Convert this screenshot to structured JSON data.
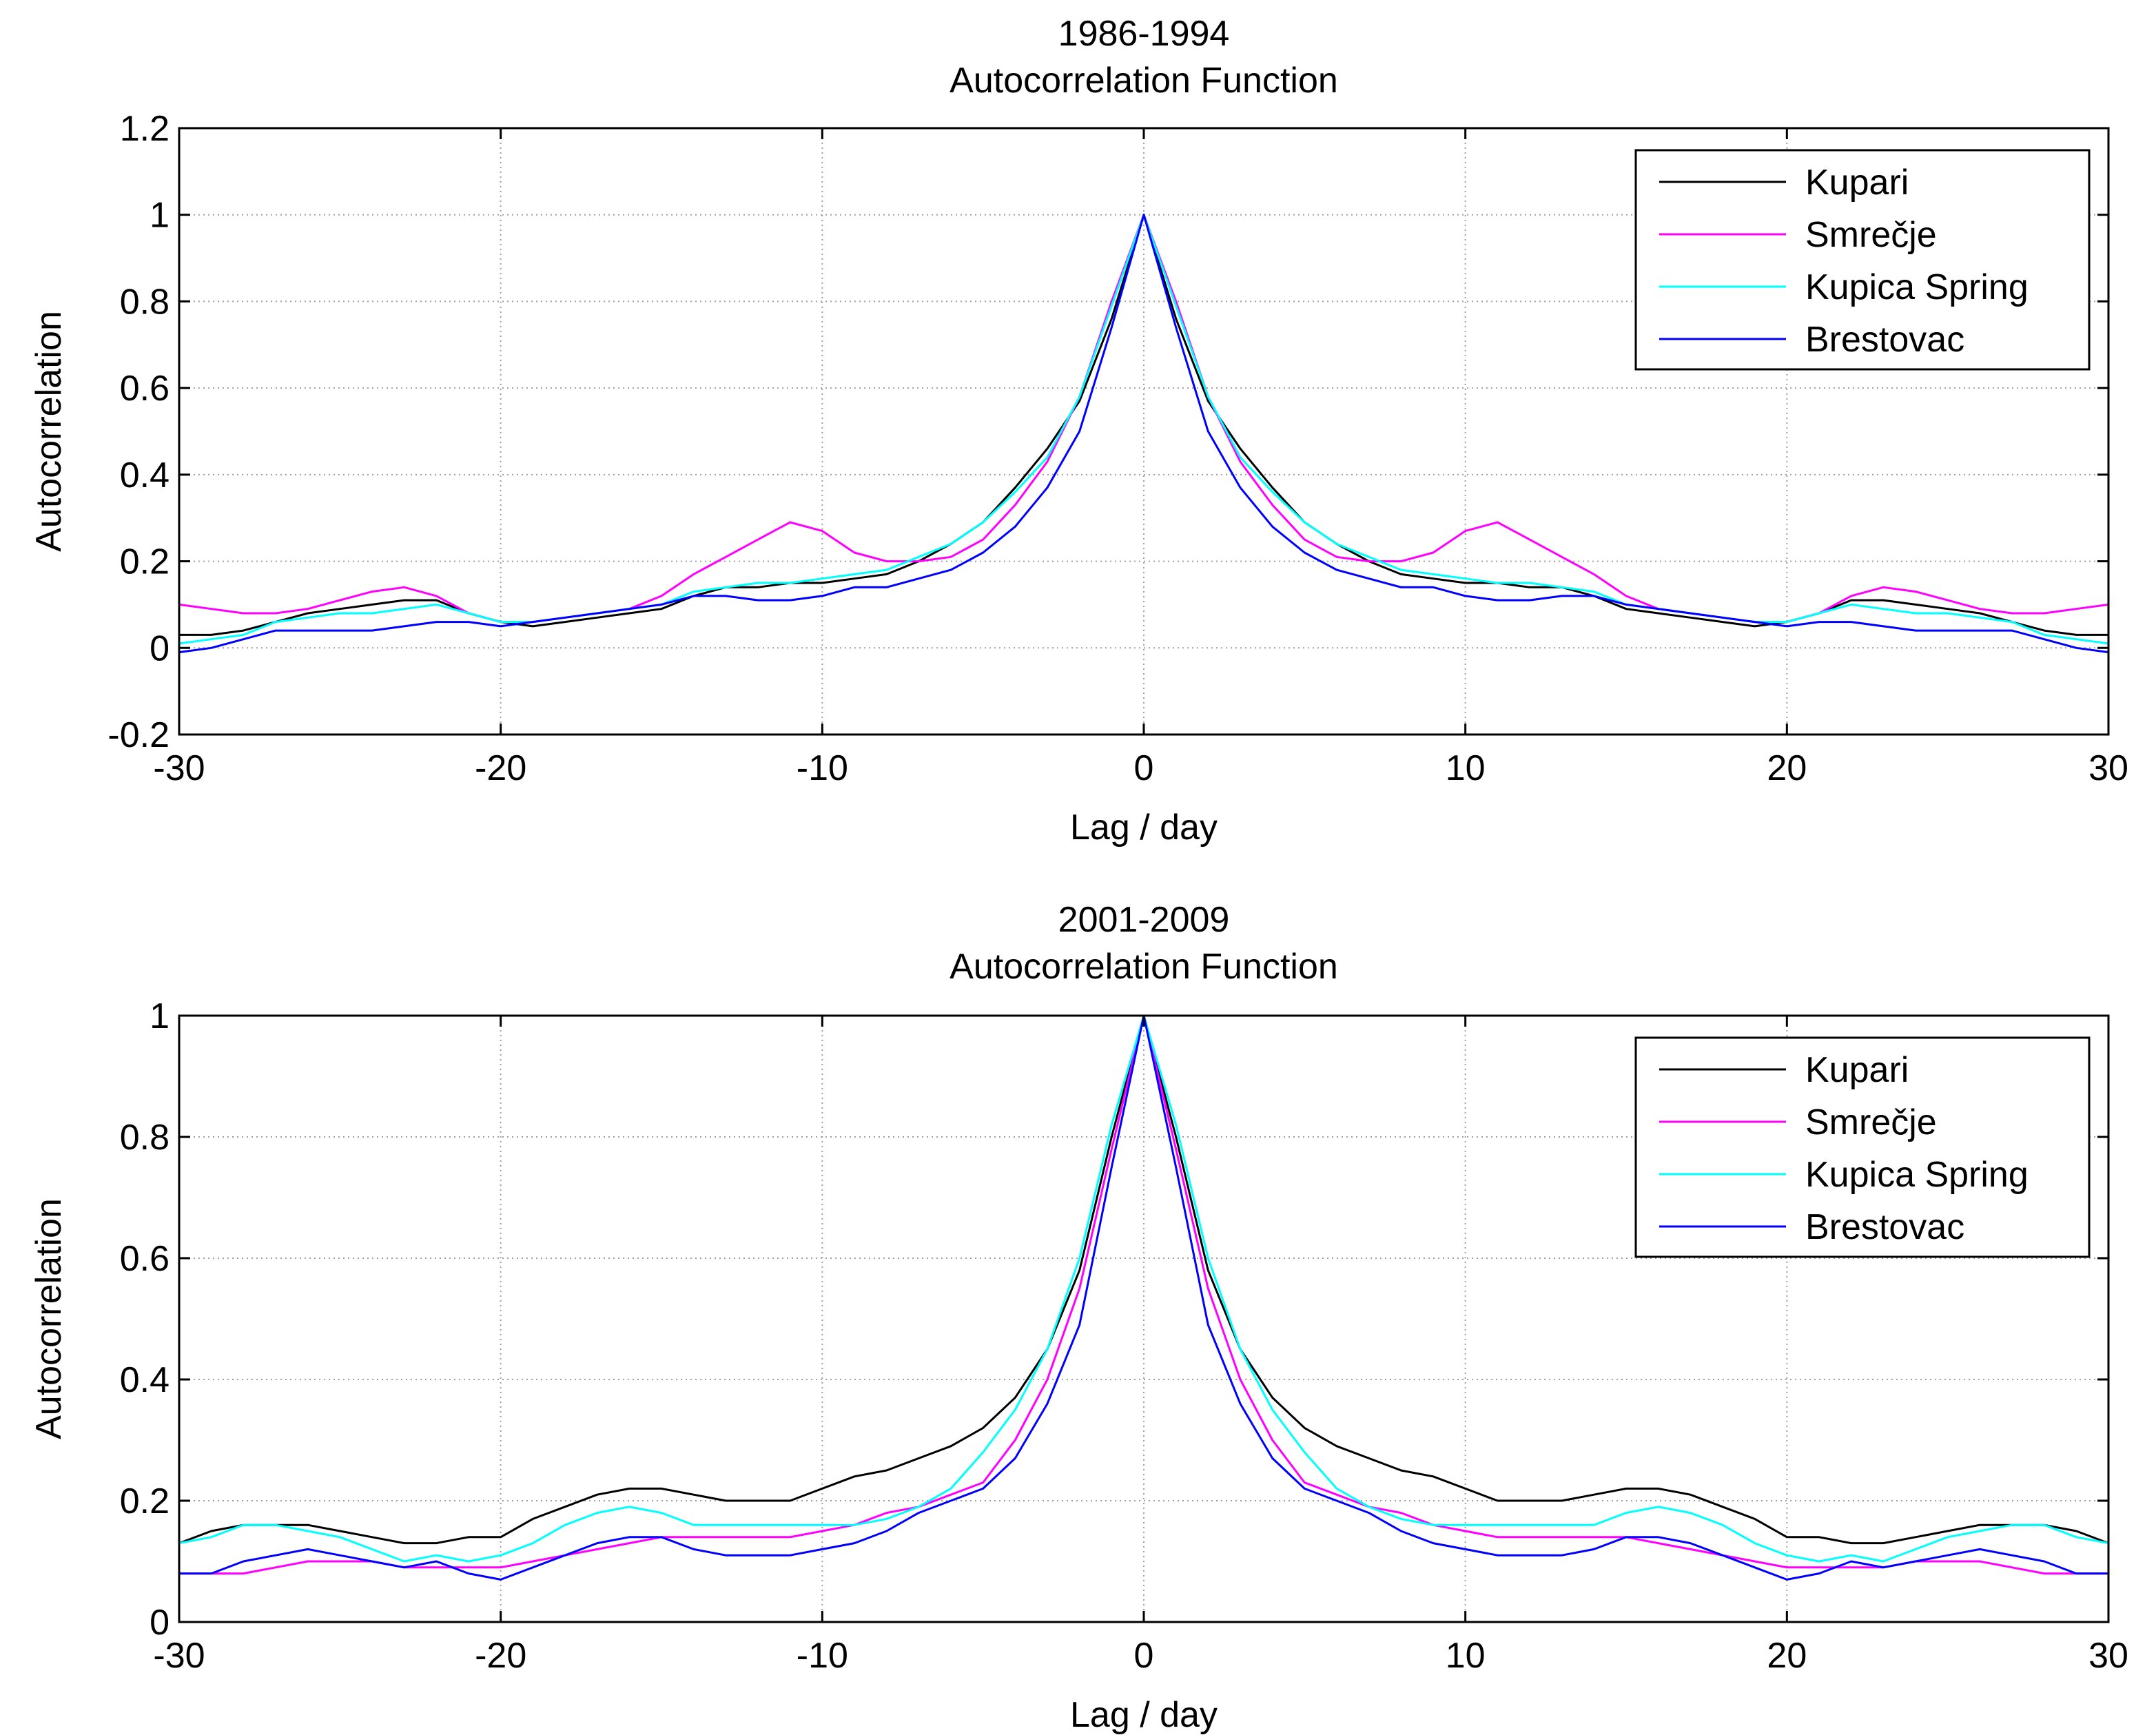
{
  "chart_data": [
    {
      "type": "line",
      "title": [
        "1986-1994",
        "Autocorrelation Function"
      ],
      "xlabel": "Lag / day",
      "ylabel": "Autocorrelation",
      "xlim": [
        -30,
        30
      ],
      "ylim": [
        -0.2,
        1.2
      ],
      "xticks": [
        -30,
        -20,
        -10,
        0,
        10,
        20,
        30
      ],
      "xtick_labels": [
        "-30",
        "-20",
        "-10",
        "0",
        "10",
        "20",
        "30"
      ],
      "yticks": [
        -0.2,
        0,
        0.2,
        0.4,
        0.6,
        0.8,
        1,
        1.2
      ],
      "ytick_labels": [
        "-0.2",
        "0",
        "0.2",
        "0.4",
        "0.6",
        "0.8",
        "1",
        "1.2"
      ],
      "grid": true,
      "legend_position": "top-right",
      "symmetric_about_zero": true,
      "x": [
        0,
        1,
        2,
        3,
        4,
        5,
        6,
        7,
        8,
        9,
        10,
        11,
        12,
        13,
        14,
        15,
        16,
        17,
        18,
        19,
        20,
        21,
        22,
        23,
        24,
        25,
        26,
        27,
        28,
        29,
        30
      ],
      "series": [
        {
          "name": "Kupari",
          "color": "#000000",
          "values": [
            1.0,
            0.76,
            0.57,
            0.46,
            0.37,
            0.29,
            0.24,
            0.2,
            0.17,
            0.16,
            0.15,
            0.15,
            0.14,
            0.14,
            0.12,
            0.09,
            0.08,
            0.07,
            0.06,
            0.05,
            0.06,
            0.08,
            0.11,
            0.11,
            0.1,
            0.09,
            0.08,
            0.06,
            0.04,
            0.03,
            0.03
          ]
        },
        {
          "name": "Smrečje",
          "color": "#ff00ff",
          "values": [
            1.0,
            0.8,
            0.58,
            0.43,
            0.33,
            0.25,
            0.21,
            0.2,
            0.2,
            0.22,
            0.27,
            0.29,
            0.25,
            0.21,
            0.17,
            0.12,
            0.09,
            0.08,
            0.07,
            0.06,
            0.06,
            0.08,
            0.12,
            0.14,
            0.13,
            0.11,
            0.09,
            0.08,
            0.08,
            0.09,
            0.1
          ]
        },
        {
          "name": "Kupica Spring",
          "color": "#00ffff",
          "values": [
            1.0,
            0.79,
            0.58,
            0.44,
            0.36,
            0.29,
            0.24,
            0.21,
            0.18,
            0.17,
            0.16,
            0.15,
            0.15,
            0.14,
            0.13,
            0.1,
            0.09,
            0.08,
            0.07,
            0.06,
            0.06,
            0.08,
            0.1,
            0.09,
            0.08,
            0.08,
            0.07,
            0.06,
            0.03,
            0.02,
            0.01
          ]
        },
        {
          "name": "Brestovac",
          "color": "#0000ff",
          "values": [
            1.0,
            0.74,
            0.5,
            0.37,
            0.28,
            0.22,
            0.18,
            0.16,
            0.14,
            0.14,
            0.12,
            0.11,
            0.11,
            0.12,
            0.12,
            0.1,
            0.09,
            0.08,
            0.07,
            0.06,
            0.05,
            0.06,
            0.06,
            0.05,
            0.04,
            0.04,
            0.04,
            0.04,
            0.02,
            0.0,
            -0.01
          ]
        }
      ]
    },
    {
      "type": "line",
      "title": [
        "2001-2009",
        "Autocorrelation Function"
      ],
      "xlabel": "Lag / day",
      "ylabel": "Autocorrelation",
      "xlim": [
        -30,
        30
      ],
      "ylim": [
        0,
        1
      ],
      "xticks": [
        -30,
        -20,
        -10,
        0,
        10,
        20,
        30
      ],
      "xtick_labels": [
        "-30",
        "-20",
        "-10",
        "0",
        "10",
        "20",
        "30"
      ],
      "yticks": [
        0,
        0.2,
        0.4,
        0.6,
        0.8,
        1
      ],
      "ytick_labels": [
        "0",
        "0.2",
        "0.4",
        "0.6",
        "0.8",
        "1"
      ],
      "grid": true,
      "legend_position": "top-right",
      "symmetric_about_zero": true,
      "x": [
        0,
        1,
        2,
        3,
        4,
        5,
        6,
        7,
        8,
        9,
        10,
        11,
        12,
        13,
        14,
        15,
        16,
        17,
        18,
        19,
        20,
        21,
        22,
        23,
        24,
        25,
        26,
        27,
        28,
        29,
        30
      ],
      "series": [
        {
          "name": "Kupari",
          "color": "#000000",
          "values": [
            1.0,
            0.8,
            0.58,
            0.45,
            0.37,
            0.32,
            0.29,
            0.27,
            0.25,
            0.24,
            0.22,
            0.2,
            0.2,
            0.2,
            0.21,
            0.22,
            0.22,
            0.21,
            0.19,
            0.17,
            0.14,
            0.14,
            0.13,
            0.13,
            0.14,
            0.15,
            0.16,
            0.16,
            0.16,
            0.15,
            0.13
          ]
        },
        {
          "name": "Smrečje",
          "color": "#ff00ff",
          "values": [
            1.0,
            0.78,
            0.55,
            0.4,
            0.3,
            0.23,
            0.21,
            0.19,
            0.18,
            0.16,
            0.15,
            0.14,
            0.14,
            0.14,
            0.14,
            0.14,
            0.13,
            0.12,
            0.11,
            0.1,
            0.09,
            0.09,
            0.09,
            0.09,
            0.1,
            0.1,
            0.1,
            0.09,
            0.08,
            0.08,
            0.08
          ]
        },
        {
          "name": "Kupica Spring",
          "color": "#00ffff",
          "values": [
            1.0,
            0.82,
            0.6,
            0.45,
            0.35,
            0.28,
            0.22,
            0.19,
            0.17,
            0.16,
            0.16,
            0.16,
            0.16,
            0.16,
            0.16,
            0.18,
            0.19,
            0.18,
            0.16,
            0.13,
            0.11,
            0.1,
            0.11,
            0.1,
            0.12,
            0.14,
            0.15,
            0.16,
            0.16,
            0.14,
            0.13
          ]
        },
        {
          "name": "Brestovac",
          "color": "#0000ff",
          "values": [
            1.0,
            0.75,
            0.49,
            0.36,
            0.27,
            0.22,
            0.2,
            0.18,
            0.15,
            0.13,
            0.12,
            0.11,
            0.11,
            0.11,
            0.12,
            0.14,
            0.14,
            0.13,
            0.11,
            0.09,
            0.07,
            0.08,
            0.1,
            0.09,
            0.1,
            0.11,
            0.12,
            0.11,
            0.1,
            0.08,
            0.08
          ]
        }
      ]
    }
  ]
}
